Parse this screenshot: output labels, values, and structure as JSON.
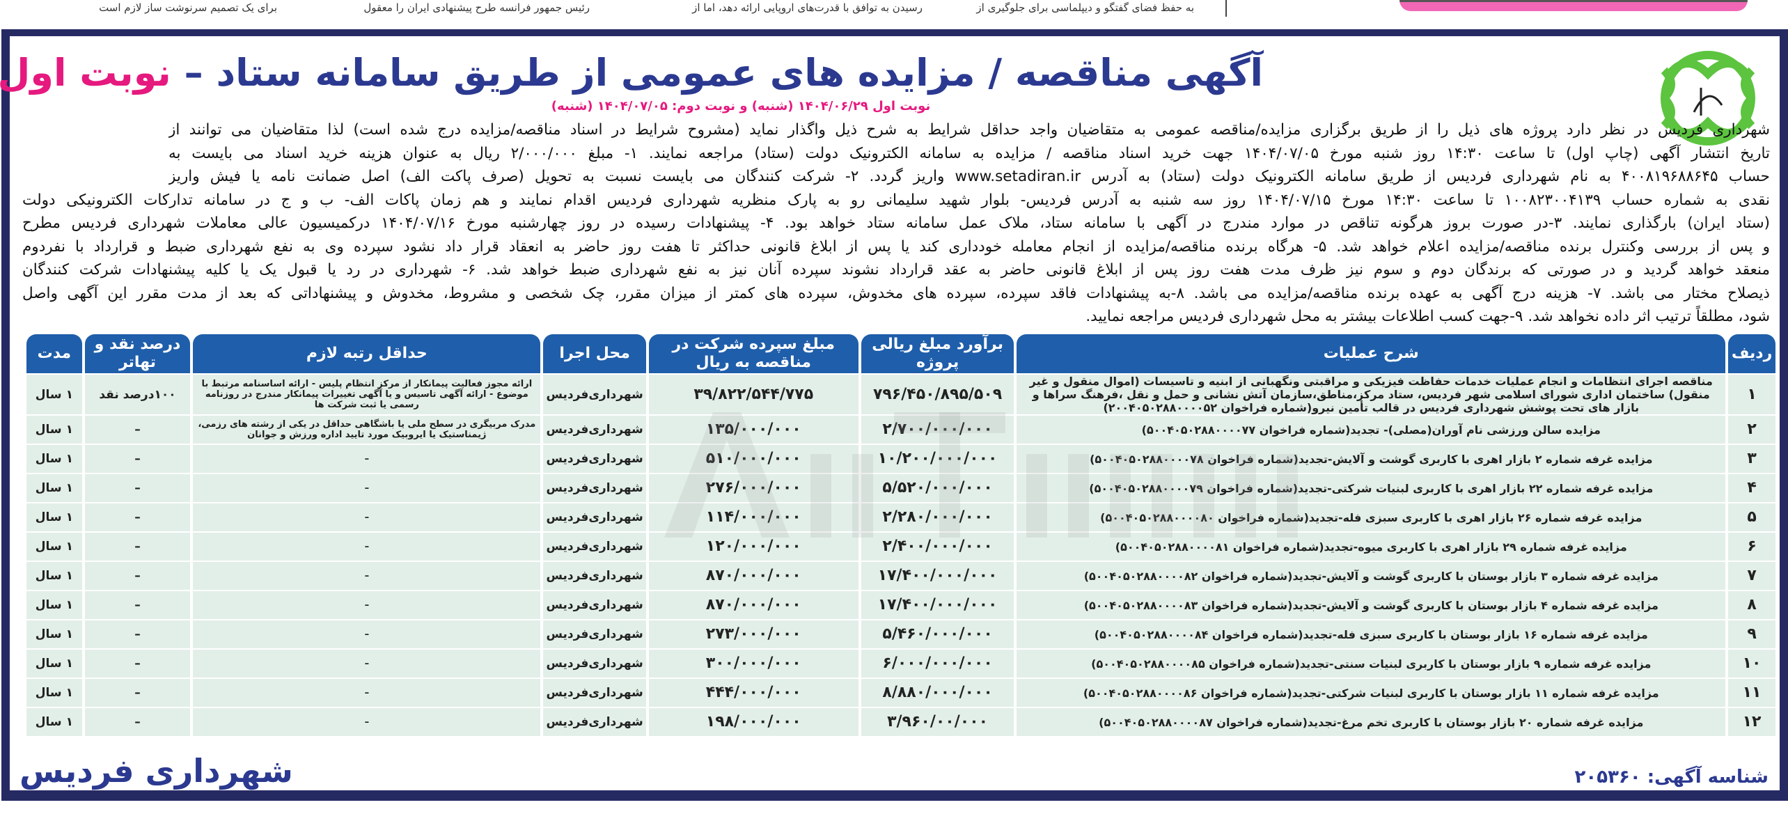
{
  "top_strip": {
    "snippets": [
      "به حفظ فضای گفتگو و دیپلماسی برای جلوگیری از",
      "رسیدن به توافق با قدرت‌های اروپایی ارائه دهد، اما از",
      "رئیس جمهور فرانسه طرح پیشنهادی ایران را معقول",
      "برای یک تصمیم سرنوشت ساز لازم است"
    ]
  },
  "logo": {
    "text": "شهرداری فردیس"
  },
  "title": {
    "main": "آگهی مناقصه / مزایده های عمومی از طریق سامانه ستاد –",
    "accent": "نوبت اول",
    "subtitle": "نوبت اول ۱۴۰۴/۰۶/۲۹ (شنبه) و نوبت دوم: ۱۴۰۴/۰۷/۰۵ (شنبه)"
  },
  "colors": {
    "navy": "#262a63",
    "title": "#2b3990",
    "accent": "#e6197f",
    "header": "#1f5eaa",
    "row": "#e2efe8",
    "logo": "#5cc43f"
  },
  "paragraph": [
    "شهرداری فردیس در نظر دارد پروژه های ذیل را از طریق برگزاری مزایده/مناقصه عمومی به متقاضیان واجد حداقل شرایط به شرح ذیل واگذار نماید (مشروح شرایط در اسناد مناقصه/مزایده درج شده است) لذا متقاضیان می توانند از",
    "تاریخ انتشار آگهی (چاپ اول) تا ساعت ۱۴:۳۰ روز شنبه مورخ ۱۴۰۴/۰۷/۰۵ جهت خرید اسناد مناقصه / مزایده به سامانه الکترونیک دولت (ستاد) مراجعه نمایند. ۱- مبلغ ۲/۰۰۰/۰۰۰ ریال به عنوان هزینه خرید اسناد می بایست به",
    "حساب ۴۰۰۸۱۹۶۸۸۶۴۵ به نام شهرداری فردیس از طریق سامانه الکترونیک دولت (ستاد) به آدرس www.setadiran.ir واریز گردد. ۲- شرکت کنندگان می بایست نسبت به تحویل (صرف پاکت الف) اصل ضمانت نامه یا فیش واریز",
    "نقدی به شماره حساب ۱۰۰۸۲۳۰۰۴۱۳۹ تا ساعت ۱۴:۳۰ مورخ ۱۴۰۴/۰۷/۱۵ روز سه شنبه به آدرس فردیس- بلوار شهید سلیمانی رو به پارک منظریه شهرداری فردیس اقدام نمایند و هم زمان پاکات الف- ب و ج در سامانه تدارکات الکترونیکی دولت",
    "(ستاد ایران) بارگذاری نمایند. ۳-در صورت بروز هرگونه تناقص در موارد مندرج در آگهی با سامانه ستاد، ملاک عمل سامانه ستاد خواهد بود. ۴- پیشنهادات رسیده در روز چهارشنبه مورخ ۱۴۰۴/۰۷/۱۶ درکمیسیون عالی معاملات شهرداری فردیس مطرح",
    "و پس از بررسی وکنترل برنده مناقصه/مزایده اعلام خواهد شد. ۵- هرگاه برنده مناقصه/مزایده از انجام معامله خودداری کند یا پس از ابلاغ قانونی حداکثر تا هفت روز حاضر به انعقاد قرار داد نشود سپرده وی به نفع شهرداری ضبط و قرارداد با نفردوم",
    "منعقد خواهد گردید و در صورتی که برندگان دوم و سوم نیز ظرف مدت هفت روز پس از ابلاغ قانونی حاضر به عقد قرارداد نشوند سپرده آنان نیز به نفع شهرداری ضبط خواهد شد. ۶- شهرداری در رد یا قبول یک یا کلیه پیشنهادات شرکت کنندگان",
    "ذیصلاح مختار می باشد. ۷- هزینه درج آگهی به عهده برنده مناقصه/مزایده می باشد. ۸-به پیشنهادات فاقد سپرده، سپرده های مخدوش، سپرده های کمتر از میزان مقرر، چک شخصی و مشروط، مخدوش و پیشنهاداتی که بعد از مدت مقرر این آگهی واصل",
    "شود، مطلقاً ترتیب اثر داده نخواهد شد. ۹-جهت کسب اطلاعات بیشتر به محل شهرداری فردیس مراجعه نمایید."
  ],
  "table": {
    "headers": [
      "ردیف",
      "شرح عملیات",
      "برآورد مبلغ ریالی پروژه",
      "مبلغ سپرده شرکت در مناقصه به ریال",
      "محل اجرا",
      "حداقل رتبه لازم",
      "درصد نقد و تهاتر",
      "مدت"
    ],
    "rows": [
      [
        "۱",
        "مناقصه اجرای انتظامات و انجام عملیات خدمات حفاظت فیزیکی و مراقبتی ونگهبانی از ابنیه و تاسیسات (اموال منقول و غیر منقول) ساختمان اداری شورای اسلامی شهر فردیس، ستاد مرکز،مناطق،سازمان آتش نشانی و حمل و نقل ،فرهنگ سراها و بازار های تحت پوشش شهرداری فردیس در قالب تأمین نیرو(شماره فراخوان ۲۰۰۴۰۵۰۲۸۸۰۰۰۰۵۲)",
        "۷۹۶/۴۵۰/۸۹۵/۵۰۹",
        "۳۹/۸۲۲/۵۴۴/۷۷۵",
        "شهرداری‌فردیس",
        "ارائه مجوز فعالیت پیمانکار از مرکز انتظام پلیس - ارائه اساسنامه مرتبط با موضوع - ارائه آگهی تاسیس و یا آگهی تغییرات پیمانکار مندرج در روزنامه رسمی یا ثبت شرکت ها",
        "۱۰۰درصد نقد",
        "۱ سال"
      ],
      [
        "۲",
        "مزایده سالن ورزشی نام آوران(مصلی)- تجدید(شماره فراخوان ۵۰۰۴۰۵۰۲۸۸۰۰۰۰۷۷)",
        "۲/۷۰۰/۰۰۰/۰۰۰",
        "۱۳۵/۰۰۰/۰۰۰",
        "شهرداری‌فردیس",
        "مدرک مربیگری در سطح ملی یا باشگاهی حداقل در یکی از رشته های رزمی، ژیمناستیک یا ایروبیک مورد تایید اداره ورزش و جوانان",
        "–",
        "۱ سال"
      ],
      [
        "۳",
        "مزایده غرفه شماره ۲ بازار اهری با کاربری گوشت و آلایش-تجدید(شماره فراخوان ۵۰۰۴۰۵۰۲۸۸۰۰۰۰۷۸)",
        "۱۰/۲۰۰/۰۰۰/۰۰۰",
        "۵۱۰/۰۰۰/۰۰۰",
        "شهرداری‌فردیس",
        "–",
        "–",
        "۱ سال"
      ],
      [
        "۴",
        "مزایده غرفه شماره ۲۲ بازار اهری با کاربری لبنیات شرکتی-تجدید(شماره فراخوان ۵۰۰۴۰۵۰۲۸۸۰۰۰۰۷۹)",
        "۵/۵۲۰/۰۰۰/۰۰۰",
        "۲۷۶/۰۰۰/۰۰۰",
        "شهرداری‌فردیس",
        "–",
        "–",
        "۱ سال"
      ],
      [
        "۵",
        "مزایده غرفه شماره ۲۶ بازار اهری با کاربری سبزی فله-تجدید(شماره فراخوان ۵۰۰۴۰۵۰۲۸۸۰۰۰۰۸۰)",
        "۲/۲۸۰/۰۰۰/۰۰۰",
        "۱۱۴/۰۰۰/۰۰۰",
        "شهرداری‌فردیس",
        "–",
        "–",
        "۱ سال"
      ],
      [
        "۶",
        "مزایده غرفه شماره ۲۹ بازار اهری با کاربری میوه-تجدید(شماره فراخوان ۵۰۰۴۰۵۰۲۸۸۰۰۰۰۸۱)",
        "۲/۴۰۰/۰۰۰/۰۰۰",
        "۱۲۰/۰۰۰/۰۰۰",
        "شهرداری‌فردیس",
        "–",
        "–",
        "۱ سال"
      ],
      [
        "۷",
        "مزایده غرفه شماره ۳ بازار بوستان با کاربری گوشت و آلایش-تجدید(شماره فراخوان ۵۰۰۴۰۵۰۲۸۸۰۰۰۰۸۲)",
        "۱۷/۴۰۰/۰۰۰/۰۰۰",
        "۸۷۰/۰۰۰/۰۰۰",
        "شهرداری‌فردیس",
        "–",
        "–",
        "۱ سال"
      ],
      [
        "۸",
        "مزایده غرفه شماره ۴ بازار بوستان با کاربری گوشت و آلایش-تجدید(شماره فراخوان ۵۰۰۴۰۵۰۲۸۸۰۰۰۰۸۳)",
        "۱۷/۴۰۰/۰۰۰/۰۰۰",
        "۸۷۰/۰۰۰/۰۰۰",
        "شهرداری‌فردیس",
        "–",
        "–",
        "۱ سال"
      ],
      [
        "۹",
        "مزایده غرفه شماره ۱۶ بازار بوستان با کاربری سبزی فله-تجدید(شماره فراخوان ۵۰۰۴۰۵۰۲۸۸۰۰۰۰۸۴)",
        "۵/۴۶۰/۰۰۰/۰۰۰",
        "۲۷۳/۰۰۰/۰۰۰",
        "شهرداری‌فردیس",
        "–",
        "–",
        "۱ سال"
      ],
      [
        "۱۰",
        "مزایده غرفه شماره ۹ بازار بوستان با کاربری لبنیات سنتی-تجدید(شماره فراخوان ۵۰۰۴۰۵۰۲۸۸۰۰۰۰۸۵)",
        "۶/۰۰۰/۰۰۰/۰۰۰",
        "۳۰۰/۰۰۰/۰۰۰",
        "شهرداری‌فردیس",
        "–",
        "–",
        "۱ سال"
      ],
      [
        "۱۱",
        "مزایده غرفه شماره ۱۱ بازار بوستان با کاربری لبنیات شرکتی-تجدید(شماره فراخوان ۵۰۰۴۰۵۰۲۸۸۰۰۰۰۸۶)",
        "۸/۸۸۰/۰۰۰/۰۰۰",
        "۴۴۴/۰۰۰/۰۰۰",
        "شهرداری‌فردیس",
        "–",
        "–",
        "۱ سال"
      ],
      [
        "۱۲",
        "مزایده غرفه شماره ۲۰ بازار بوستان با کاربری تخم مرغ-تجدید(شماره فراخوان ۵۰۰۴۰۵۰۲۸۸۰۰۰۰۸۷)",
        "۳/۹۶۰/۰۰/۰۰۰",
        "۱۹۸/۰۰۰/۰۰۰",
        "شهرداری‌فردیس",
        "–",
        "–",
        "۱ سال"
      ]
    ]
  },
  "watermark": "AriaTender",
  "footer": {
    "ad_id": "شناسه آگهی: ۲۰۵۳۶۰",
    "signature": "شهرداری فردیس"
  }
}
